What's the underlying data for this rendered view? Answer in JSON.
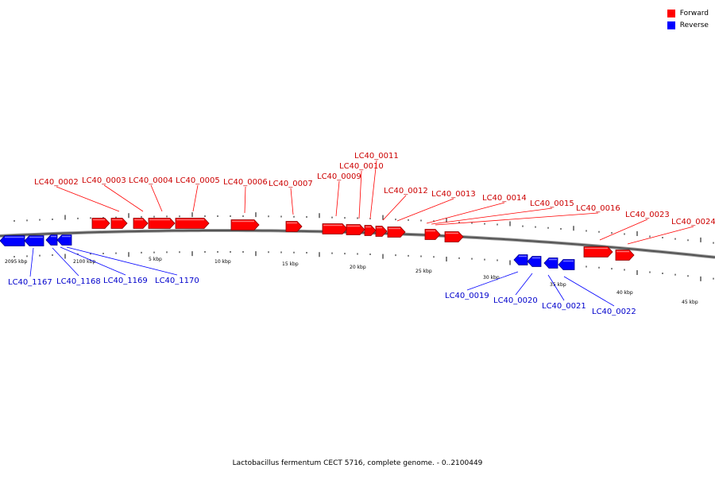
{
  "legend": {
    "forward_label": "Forward",
    "reverse_label": "Reverse",
    "forward_color": "#ff0000",
    "reverse_color": "#0000ff"
  },
  "caption": "Lactobacillus fermentum CECT 5716, complete genome. - 0..2100449",
  "scale_labels": [
    "2095 kbp",
    "2100 kbp",
    "5 kbp",
    "10 kbp",
    "15 kbp",
    "20 kbp",
    "25 kbp",
    "30 kbp",
    "35 kbp",
    "40 kbp",
    "45 kbp"
  ],
  "forward_genes": [
    "LC40_0002",
    "LC40_0003",
    "LC40_0004",
    "LC40_0005",
    "LC40_0006",
    "LC40_0007",
    "LC40_0009",
    "LC40_0010",
    "LC40_0011",
    "LC40_0012",
    "LC40_0013",
    "LC40_0014",
    "LC40_0015",
    "LC40_0016",
    "LC40_0023",
    "LC40_0024"
  ],
  "reverse_genes": [
    "LC40_1167",
    "LC40_1168",
    "LC40_1169",
    "LC40_1170",
    "LC40_0019",
    "LC40_0020",
    "LC40_0021",
    "LC40_0022"
  ]
}
